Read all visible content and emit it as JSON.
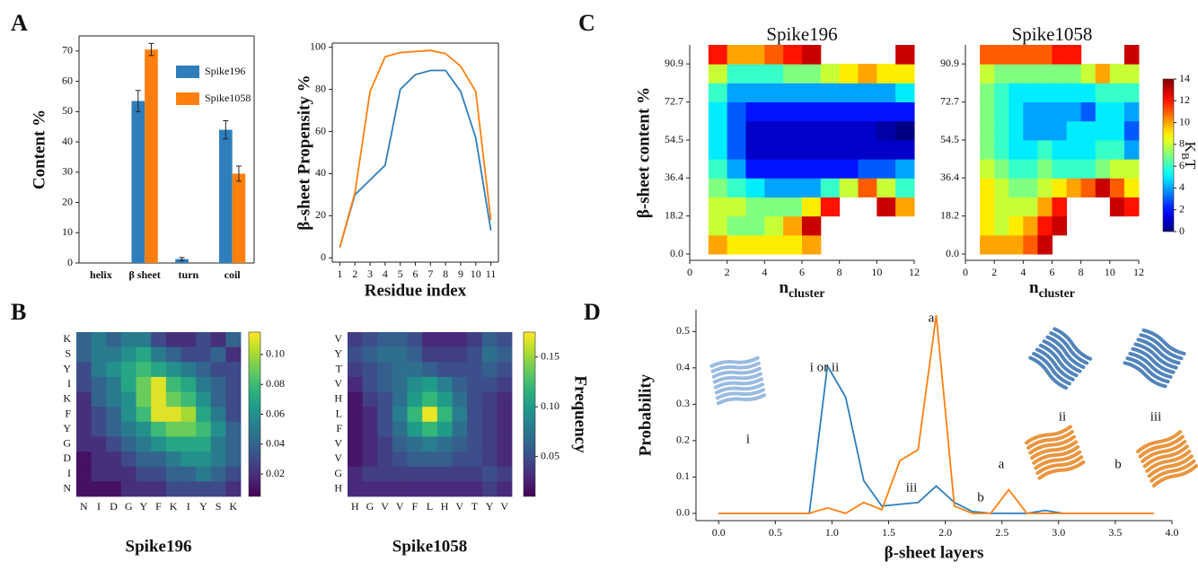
{
  "chart_data": [
    {
      "type": "bar",
      "panel": "A",
      "ylabel": "Content %",
      "categories": [
        "helix",
        "β sheet",
        "turn",
        "coil"
      ],
      "series": [
        {
          "name": "Spike196",
          "color": "#2e7ebc",
          "values": [
            0,
            53.5,
            1.3,
            44
          ],
          "errors": [
            0,
            3.5,
            0.5,
            3
          ]
        },
        {
          "name": "Spike1058",
          "color": "#ff7f0e",
          "values": [
            0,
            70.5,
            0,
            29.5
          ],
          "errors": [
            0,
            2,
            0,
            2.5
          ]
        }
      ],
      "ylim": [
        0,
        75
      ],
      "yticks": [
        0,
        10,
        20,
        30,
        40,
        50,
        60,
        70
      ]
    },
    {
      "type": "line",
      "xlabel": "Residue index",
      "ylabel": "β-sheet Propensity %",
      "x": [
        1,
        2,
        3,
        4,
        5,
        6,
        7,
        8,
        9,
        10,
        11
      ],
      "series": [
        {
          "color": "#2e7ebc",
          "values": [
            5,
            30,
            37,
            44,
            80,
            87,
            89,
            89,
            79,
            57,
            13
          ]
        },
        {
          "color": "#ff7f0e",
          "values": [
            5,
            31,
            79,
            95.5,
            97.5,
            98,
            98.5,
            97,
            91,
            79,
            18
          ]
        }
      ],
      "xlim": [
        0.5,
        11.5
      ],
      "ylim": [
        -2,
        102
      ],
      "xticks": [
        1,
        2,
        3,
        4,
        5,
        6,
        7,
        8,
        9,
        10,
        11
      ],
      "yticks": [
        0,
        20,
        40,
        60,
        80,
        100
      ]
    },
    {
      "type": "heatmap",
      "panel": "B",
      "title": "Spike196",
      "colormap": "viridis",
      "xlabels": [
        "N",
        "I",
        "D",
        "G",
        "Y",
        "F",
        "K",
        "I",
        "Y",
        "S",
        "K"
      ],
      "ylabels": [
        "K",
        "S",
        "Y",
        "I",
        "K",
        "F",
        "Y",
        "G",
        "D",
        "I",
        "N"
      ],
      "z": [
        [
          0.04,
          0.05,
          0.04,
          0.05,
          0.05,
          0.03,
          0.02,
          0.02,
          0.03,
          0.02,
          0.04
        ],
        [
          0.04,
          0.05,
          0.05,
          0.06,
          0.07,
          0.05,
          0.04,
          0.03,
          0.03,
          0.04,
          0.02
        ],
        [
          0.03,
          0.05,
          0.06,
          0.07,
          0.08,
          0.07,
          0.06,
          0.05,
          0.04,
          0.03,
          0.03
        ],
        [
          0.03,
          0.04,
          0.05,
          0.07,
          0.09,
          0.11,
          0.08,
          0.07,
          0.05,
          0.04,
          0.03
        ],
        [
          0.02,
          0.04,
          0.05,
          0.06,
          0.09,
          0.11,
          0.09,
          0.08,
          0.06,
          0.04,
          0.03
        ],
        [
          0.02,
          0.03,
          0.04,
          0.06,
          0.08,
          0.11,
          0.11,
          0.1,
          0.07,
          0.05,
          0.03
        ],
        [
          0.02,
          0.03,
          0.04,
          0.05,
          0.06,
          0.08,
          0.09,
          0.09,
          0.08,
          0.06,
          0.04
        ],
        [
          0.02,
          0.02,
          0.03,
          0.04,
          0.05,
          0.06,
          0.07,
          0.07,
          0.07,
          0.05,
          0.04
        ],
        [
          0.01,
          0.02,
          0.02,
          0.03,
          0.04,
          0.04,
          0.05,
          0.06,
          0.06,
          0.05,
          0.04
        ],
        [
          0.01,
          0.02,
          0.02,
          0.02,
          0.03,
          0.03,
          0.04,
          0.04,
          0.05,
          0.04,
          0.03
        ],
        [
          0.01,
          0.01,
          0.01,
          0.02,
          0.02,
          0.02,
          0.03,
          0.03,
          0.03,
          0.03,
          0.02
        ]
      ],
      "zlim": [
        0.005,
        0.115
      ],
      "zticks": [
        0.02,
        0.04,
        0.06,
        0.08,
        {
          "value": 0.1,
          "label": "0.10"
        }
      ]
    },
    {
      "type": "heatmap",
      "title": "Spike1058",
      "colormap": "viridis",
      "colorbar_label": "Frequency",
      "xlabels": [
        "H",
        "G",
        "V",
        "V",
        "F",
        "L",
        "H",
        "V",
        "T",
        "Y",
        "V"
      ],
      "ylabels": [
        "V",
        "Y",
        "T",
        "V",
        "H",
        "L",
        "F",
        "V",
        "V",
        "G",
        "H"
      ],
      "z": [
        [
          0.04,
          0.05,
          0.06,
          0.06,
          0.05,
          0.03,
          0.03,
          0.03,
          0.04,
          0.06,
          0.05
        ],
        [
          0.05,
          0.06,
          0.07,
          0.07,
          0.06,
          0.04,
          0.04,
          0.04,
          0.05,
          0.07,
          0.06
        ],
        [
          0.04,
          0.05,
          0.06,
          0.07,
          0.07,
          0.06,
          0.05,
          0.05,
          0.05,
          0.06,
          0.05
        ],
        [
          0.03,
          0.05,
          0.06,
          0.07,
          0.09,
          0.1,
          0.08,
          0.06,
          0.05,
          0.05,
          0.04
        ],
        [
          0.02,
          0.04,
          0.05,
          0.07,
          0.1,
          0.12,
          0.1,
          0.07,
          0.05,
          0.04,
          0.03
        ],
        [
          0.02,
          0.03,
          0.05,
          0.08,
          0.12,
          0.17,
          0.12,
          0.08,
          0.05,
          0.04,
          0.03
        ],
        [
          0.02,
          0.03,
          0.05,
          0.07,
          0.1,
          0.12,
          0.1,
          0.07,
          0.05,
          0.04,
          0.03
        ],
        [
          0.02,
          0.03,
          0.04,
          0.06,
          0.07,
          0.08,
          0.07,
          0.06,
          0.05,
          0.04,
          0.03
        ],
        [
          0.02,
          0.03,
          0.04,
          0.05,
          0.06,
          0.06,
          0.06,
          0.05,
          0.05,
          0.04,
          0.03
        ],
        [
          0.03,
          0.04,
          0.04,
          0.04,
          0.04,
          0.04,
          0.04,
          0.04,
          0.04,
          0.05,
          0.04
        ],
        [
          0.03,
          0.03,
          0.03,
          0.03,
          0.03,
          0.03,
          0.03,
          0.03,
          0.03,
          0.04,
          0.03
        ]
      ],
      "zlim": [
        0.01,
        0.175
      ],
      "zticks": [
        0.05,
        {
          "value": 0.1,
          "label": "0.10"
        },
        0.15
      ]
    },
    {
      "type": "contour",
      "panel": "C",
      "title": "Spike196",
      "colormap": "jet",
      "ylabel": "β-sheet content %",
      "xlabel": {
        "main": "n",
        "sub": "cluster"
      },
      "xedges": [
        0,
        1,
        2,
        3,
        4,
        5,
        6,
        7,
        8,
        9,
        10,
        11,
        12
      ],
      "yedges": [
        0,
        9.09,
        18.18,
        27.27,
        36.36,
        45.45,
        54.55,
        63.64,
        72.73,
        81.82,
        90.91,
        100
      ],
      "z": [
        [
          null,
          10,
          9,
          9,
          9,
          9,
          10,
          null,
          null,
          null,
          null,
          null
        ],
        [
          null,
          8,
          7,
          7,
          8,
          10,
          13,
          null,
          null,
          null,
          null,
          null
        ],
        [
          null,
          8,
          8,
          7,
          7,
          7,
          9,
          12,
          null,
          null,
          13,
          10
        ],
        [
          null,
          7,
          6,
          5,
          4,
          4,
          4,
          6,
          8,
          11,
          8,
          6
        ],
        [
          null,
          6,
          4,
          2,
          2,
          2,
          2,
          2,
          2,
          3,
          3,
          4
        ],
        [
          null,
          5,
          3,
          1,
          1,
          1,
          1,
          1,
          1,
          1,
          1,
          1
        ],
        [
          null,
          5,
          3,
          1,
          1,
          1,
          1,
          1,
          1,
          1,
          0.5,
          0
        ],
        [
          null,
          5,
          3,
          2,
          2,
          2,
          2,
          2,
          2,
          2,
          2,
          2
        ],
        [
          null,
          6,
          4,
          4,
          4,
          4,
          4,
          4,
          4,
          4,
          4,
          5
        ],
        [
          null,
          8,
          6,
          6,
          6,
          7,
          7,
          8,
          9,
          10,
          9,
          9
        ],
        [
          null,
          12,
          10,
          10,
          11,
          12,
          13,
          null,
          null,
          null,
          null,
          13
        ]
      ],
      "zlim": [
        0,
        14
      ],
      "xlim": [
        0,
        12
      ],
      "ylim": [
        -3,
        100
      ],
      "xticks": [
        0,
        2,
        4,
        6,
        8,
        10,
        12
      ],
      "yticks": [
        {
          "value": 0,
          "label": "0.0"
        },
        18.2,
        36.4,
        54.5,
        72.7,
        90.9
      ]
    },
    {
      "type": "contour",
      "title": "Spike1058",
      "colormap": "jet",
      "xlabel": {
        "main": "n",
        "sub": "cluster"
      },
      "colorbar_label": {
        "main": "K",
        "sub": "B",
        "after": "T"
      },
      "xedges": [
        0,
        1,
        2,
        3,
        4,
        5,
        6,
        7,
        8,
        9,
        10,
        11,
        12
      ],
      "yedges": [
        0,
        9.09,
        18.18,
        27.27,
        36.36,
        45.45,
        54.55,
        63.64,
        72.73,
        81.82,
        90.91,
        100
      ],
      "z": [
        [
          null,
          10,
          10,
          10,
          11,
          13,
          null,
          null,
          null,
          null,
          null,
          null
        ],
        [
          null,
          9,
          8,
          9,
          10,
          12,
          13,
          null,
          null,
          null,
          null,
          null
        ],
        [
          null,
          9,
          8,
          8,
          8,
          10,
          12,
          null,
          null,
          null,
          13,
          12
        ],
        [
          null,
          9,
          8,
          7,
          7,
          8,
          9,
          10,
          11,
          13,
          11,
          9
        ],
        [
          null,
          8,
          7,
          6,
          6,
          7,
          6,
          6,
          6,
          7,
          8,
          8
        ],
        [
          null,
          7,
          6,
          5,
          5,
          6,
          5,
          5,
          5,
          6,
          6,
          4
        ],
        [
          null,
          7,
          6,
          5,
          4,
          4,
          4,
          5,
          5,
          5,
          5,
          3
        ],
        [
          null,
          7,
          6,
          5,
          4,
          4,
          4,
          4,
          3,
          5,
          5,
          4
        ],
        [
          null,
          7,
          6,
          5,
          5,
          5,
          5,
          5,
          5,
          6,
          6,
          6
        ],
        [
          null,
          8,
          7,
          7,
          7,
          7,
          7,
          7,
          8,
          10,
          8,
          8
        ],
        [
          null,
          11,
          11,
          11,
          11,
          11,
          12,
          12,
          null,
          null,
          null,
          13
        ]
      ],
      "zlim": [
        0,
        14
      ],
      "zticks": [
        0,
        2,
        4,
        6,
        8,
        10,
        12,
        14
      ],
      "xlim": [
        0,
        12
      ],
      "ylim": [
        -3,
        100
      ],
      "xticks": [
        0,
        2,
        4,
        6,
        8,
        10,
        12
      ],
      "yticks": [
        {
          "value": 0,
          "label": "0.0"
        },
        18.2,
        36.4,
        54.5,
        72.7,
        90.9
      ]
    },
    {
      "type": "line",
      "panel": "D",
      "xlabel": "β-sheet layers",
      "ylabel": "Probability",
      "x": [
        0,
        0.16,
        0.32,
        0.48,
        0.64,
        0.8,
        0.96,
        1.12,
        1.28,
        1.44,
        1.6,
        1.76,
        1.92,
        2.08,
        2.24,
        2.4,
        2.56,
        2.72,
        2.88,
        3.04,
        3.2,
        3.36,
        3.52,
        3.68,
        3.84
      ],
      "series": [
        {
          "color": "#2e7ebc",
          "values": [
            0,
            0,
            0,
            0,
            0,
            0,
            0.405,
            0.32,
            0.09,
            0.02,
            0.025,
            0.03,
            0.075,
            0.03,
            0.005,
            0,
            0,
            0,
            0.008,
            0,
            null,
            null,
            null,
            null,
            null
          ]
        },
        {
          "color": "#ff7f0e",
          "values": [
            0,
            0,
            0,
            0,
            0,
            0,
            0.015,
            0,
            0.03,
            0.01,
            0.145,
            0.175,
            0.545,
            0.02,
            0,
            0,
            0.065,
            0,
            0,
            0,
            0,
            0,
            0,
            0,
            0
          ]
        }
      ],
      "xlim": [
        -0.2,
        4.0
      ],
      "ylim": [
        -0.02,
        0.56
      ],
      "xticks": [
        {
          "value": 0,
          "label": "0.0"
        },
        0.5,
        {
          "value": 1,
          "label": "1.0"
        },
        1.5,
        {
          "value": 2,
          "label": "2.0"
        },
        2.5,
        {
          "value": 3,
          "label": "3.0"
        },
        3.5,
        {
          "value": 4,
          "label": "4.0"
        }
      ],
      "yticks": [
        {
          "value": 0,
          "label": "0.0"
        },
        0.1,
        0.2,
        0.3,
        0.4,
        0.5
      ],
      "annotations": [
        {
          "text": "i or ii",
          "color": "#2e7ebc"
        },
        {
          "text": "iii",
          "color": "#2e7ebc"
        },
        {
          "text": "a",
          "color": "#ff7f0e"
        },
        {
          "text": "b",
          "color": "#ff7f0e"
        }
      ],
      "image_labels": [
        {
          "text": "i",
          "color": "#2e7ebc"
        },
        {
          "text": "ii",
          "color": "#2e7ebc"
        },
        {
          "text": "iii",
          "color": "#2e7ebc"
        },
        {
          "text": "a",
          "color": "#ff7f0e"
        },
        {
          "text": "b",
          "color": "#ff7f0e"
        }
      ]
    }
  ]
}
